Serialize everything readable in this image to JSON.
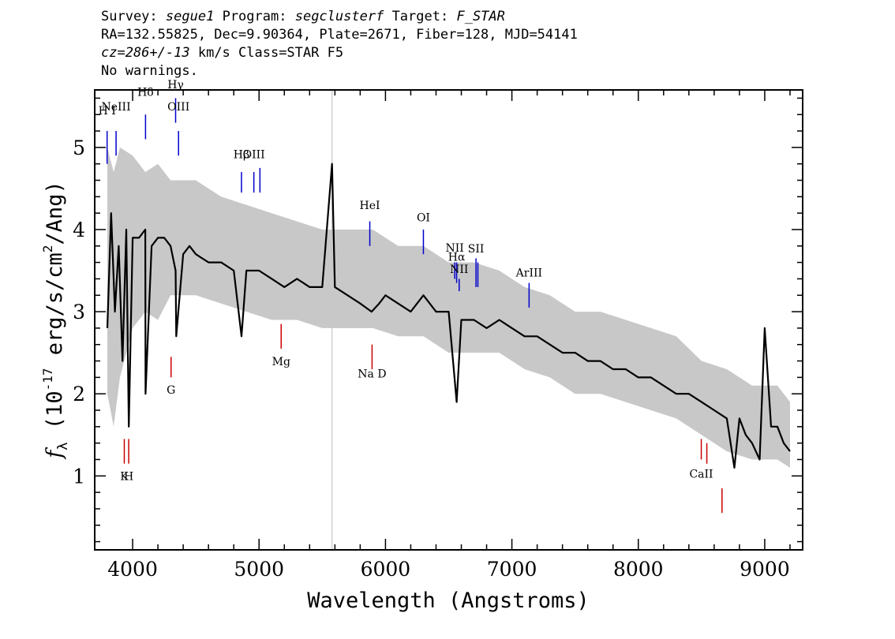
{
  "header": {
    "survey_label": "Survey:",
    "survey": "segue1",
    "program_label": "Program:",
    "program": "segclusterf",
    "target_label": "Target:",
    "target": "F_STAR",
    "line2": "RA=132.55825, Dec=9.90364, Plate=2671, Fiber=128, MJD=54141",
    "cz_value": "cz=286+/-13",
    "cz_units": "km/s Class=STAR F5",
    "warnings": "No warnings."
  },
  "chart_data": {
    "type": "line",
    "xlabel": "Wavelength (Angstroms)",
    "ylabel": "f_λ (10^-17 erg/s/cm^2/Ang)",
    "xlim": [
      3700,
      9300
    ],
    "ylim": [
      0.1,
      5.7
    ],
    "xticks": [
      4000,
      5000,
      6000,
      7000,
      8000,
      9000
    ],
    "yticks": [
      1,
      2,
      3,
      4,
      5
    ],
    "grid": false,
    "sky_line_x": 5577,
    "series": [
      {
        "role": "error band / raw flux",
        "color": "#c8c8c8",
        "x": [
          3800,
          3850,
          3900,
          4000,
          4100,
          4200,
          4300,
          4400,
          4500,
          4700,
          4900,
          5100,
          5300,
          5500,
          5700,
          5900,
          6100,
          6300,
          6500,
          6700,
          6900,
          7100,
          7300,
          7500,
          7700,
          7900,
          8100,
          8300,
          8500,
          8700,
          8900,
          9100,
          9200
        ],
        "lower": [
          2.0,
          1.6,
          2.2,
          2.8,
          3.0,
          2.9,
          3.2,
          3.2,
          3.2,
          3.1,
          3.0,
          2.9,
          2.9,
          2.8,
          2.8,
          2.8,
          2.7,
          2.7,
          2.5,
          2.5,
          2.5,
          2.3,
          2.2,
          2.0,
          2.0,
          1.9,
          1.8,
          1.7,
          1.5,
          1.3,
          1.2,
          1.2,
          1.1
        ],
        "upper": [
          5.0,
          4.7,
          5.0,
          4.9,
          4.7,
          4.8,
          4.6,
          4.6,
          4.6,
          4.4,
          4.3,
          4.2,
          4.1,
          4.0,
          4.0,
          4.0,
          3.8,
          3.8,
          3.6,
          3.6,
          3.5,
          3.3,
          3.2,
          3.0,
          3.0,
          2.9,
          2.8,
          2.7,
          2.4,
          2.3,
          2.1,
          2.1,
          1.9
        ]
      },
      {
        "role": "smoothed flux",
        "color": "#000000",
        "x": [
          3800,
          3830,
          3860,
          3890,
          3920,
          3950,
          3970,
          4000,
          4050,
          4100,
          4102,
          4150,
          4200,
          4250,
          4300,
          4340,
          4345,
          4400,
          4450,
          4500,
          4600,
          4700,
          4800,
          4861,
          4900,
          5000,
          5100,
          5200,
          5300,
          5400,
          5500,
          5577,
          5600,
          5700,
          5800,
          5890,
          5950,
          6000,
          6100,
          6200,
          6300,
          6400,
          6500,
          6563,
          6600,
          6700,
          6800,
          6900,
          7000,
          7100,
          7200,
          7300,
          7400,
          7500,
          7600,
          7700,
          7800,
          7900,
          8000,
          8100,
          8200,
          8300,
          8400,
          8500,
          8600,
          8700,
          8760,
          8800,
          8850,
          8900,
          8960,
          9000,
          9050,
          9100,
          9150,
          9200
        ],
        "y": [
          2.8,
          4.2,
          3.0,
          3.8,
          2.4,
          4.0,
          1.6,
          3.9,
          3.9,
          4.0,
          2.0,
          3.8,
          3.9,
          3.9,
          3.8,
          3.5,
          2.7,
          3.7,
          3.8,
          3.7,
          3.6,
          3.6,
          3.5,
          2.7,
          3.5,
          3.5,
          3.4,
          3.3,
          3.4,
          3.3,
          3.3,
          4.8,
          3.3,
          3.2,
          3.1,
          3.0,
          3.1,
          3.2,
          3.1,
          3.0,
          3.2,
          3.0,
          3.0,
          1.9,
          2.9,
          2.9,
          2.8,
          2.9,
          2.8,
          2.7,
          2.7,
          2.6,
          2.5,
          2.5,
          2.4,
          2.4,
          2.3,
          2.3,
          2.2,
          2.2,
          2.1,
          2.0,
          2.0,
          1.9,
          1.8,
          1.7,
          1.1,
          1.7,
          1.5,
          1.4,
          1.2,
          2.8,
          1.6,
          1.6,
          1.4,
          1.3
        ]
      }
    ],
    "emission_lines": [
      {
        "label": "H I",
        "x": 3798,
        "y_lo": 4.8,
        "y_hi": 5.2,
        "ly": 5.4,
        "color": "#0000cc"
      },
      {
        "label": "NeIII",
        "x": 3869,
        "y_lo": 4.9,
        "y_hi": 5.2,
        "ly": 5.45,
        "color": "#0000cc"
      },
      {
        "label": "Hδ",
        "x": 4102,
        "y_lo": 5.1,
        "y_hi": 5.4,
        "ly": 5.63,
        "color": "#0000cc"
      },
      {
        "label": "Hγ",
        "x": 4340,
        "y_lo": 5.3,
        "y_hi": 5.6,
        "ly": 5.72,
        "color": "#0000cc"
      },
      {
        "label": "OIII",
        "x": 4363,
        "y_lo": 4.9,
        "y_hi": 5.2,
        "ly": 5.45,
        "color": "#0000cc"
      },
      {
        "label": "Hβ",
        "x": 4861,
        "y_lo": 4.45,
        "y_hi": 4.7,
        "ly": 4.87,
        "color": "#0000cc"
      },
      {
        "label": "OIII",
        "x": 4959,
        "y_lo": 4.45,
        "y_hi": 4.7,
        "ly": 4.87,
        "color": "#0000cc"
      },
      {
        "label": "",
        "x": 5007,
        "y_lo": 4.45,
        "y_hi": 4.75,
        "ly": 0,
        "color": "#0000cc"
      },
      {
        "label": "HeI",
        "x": 5876,
        "y_lo": 3.8,
        "y_hi": 4.1,
        "ly": 4.25,
        "color": "#0000cc"
      },
      {
        "label": "OI",
        "x": 6300,
        "y_lo": 3.7,
        "y_hi": 4.0,
        "ly": 4.1,
        "color": "#0000cc"
      },
      {
        "label": "NII",
        "x": 6548,
        "y_lo": 3.4,
        "y_hi": 3.6,
        "ly": 3.73,
        "color": "#0000cc"
      },
      {
        "label": "Hα",
        "x": 6563,
        "y_lo": 3.35,
        "y_hi": 3.6,
        "ly": 3.62,
        "color": "#0000cc"
      },
      {
        "label": "NII",
        "x": 6583,
        "y_lo": 3.25,
        "y_hi": 3.4,
        "ly": 3.47,
        "color": "#0000cc"
      },
      {
        "label": "SII",
        "x": 6716,
        "y_lo": 3.3,
        "y_hi": 3.65,
        "ly": 3.72,
        "color": "#0000cc"
      },
      {
        "label": "",
        "x": 6731,
        "y_lo": 3.3,
        "y_hi": 3.6,
        "ly": 0,
        "color": "#0000cc"
      },
      {
        "label": "ArIII",
        "x": 7136,
        "y_lo": 3.05,
        "y_hi": 3.35,
        "ly": 3.43,
        "color": "#0000cc"
      }
    ],
    "absorption_lines": [
      {
        "label": "K",
        "x": 3934,
        "y_lo": 1.15,
        "y_hi": 1.45,
        "ly": 0.95,
        "color": "#cc0000"
      },
      {
        "label": "H",
        "x": 3969,
        "y_lo": 1.15,
        "y_hi": 1.45,
        "ly": 0.95,
        "color": "#cc0000"
      },
      {
        "label": "G",
        "x": 4304,
        "y_lo": 2.2,
        "y_hi": 2.45,
        "ly": 2.0,
        "color": "#cc0000"
      },
      {
        "label": "Mg",
        "x": 5175,
        "y_lo": 2.55,
        "y_hi": 2.85,
        "ly": 2.35,
        "color": "#cc0000"
      },
      {
        "label": "Na D",
        "x": 5894,
        "y_lo": 2.3,
        "y_hi": 2.6,
        "ly": 2.2,
        "color": "#cc0000"
      },
      {
        "label": "CaII",
        "x": 8498,
        "y_lo": 1.2,
        "y_hi": 1.45,
        "ly": 0.98,
        "color": "#cc0000"
      },
      {
        "label": "",
        "x": 8542,
        "y_lo": 1.15,
        "y_hi": 1.4,
        "ly": 0,
        "color": "#cc0000"
      },
      {
        "label": "",
        "x": 8662,
        "y_lo": 0.55,
        "y_hi": 0.85,
        "ly": 0,
        "color": "#cc0000"
      }
    ]
  }
}
